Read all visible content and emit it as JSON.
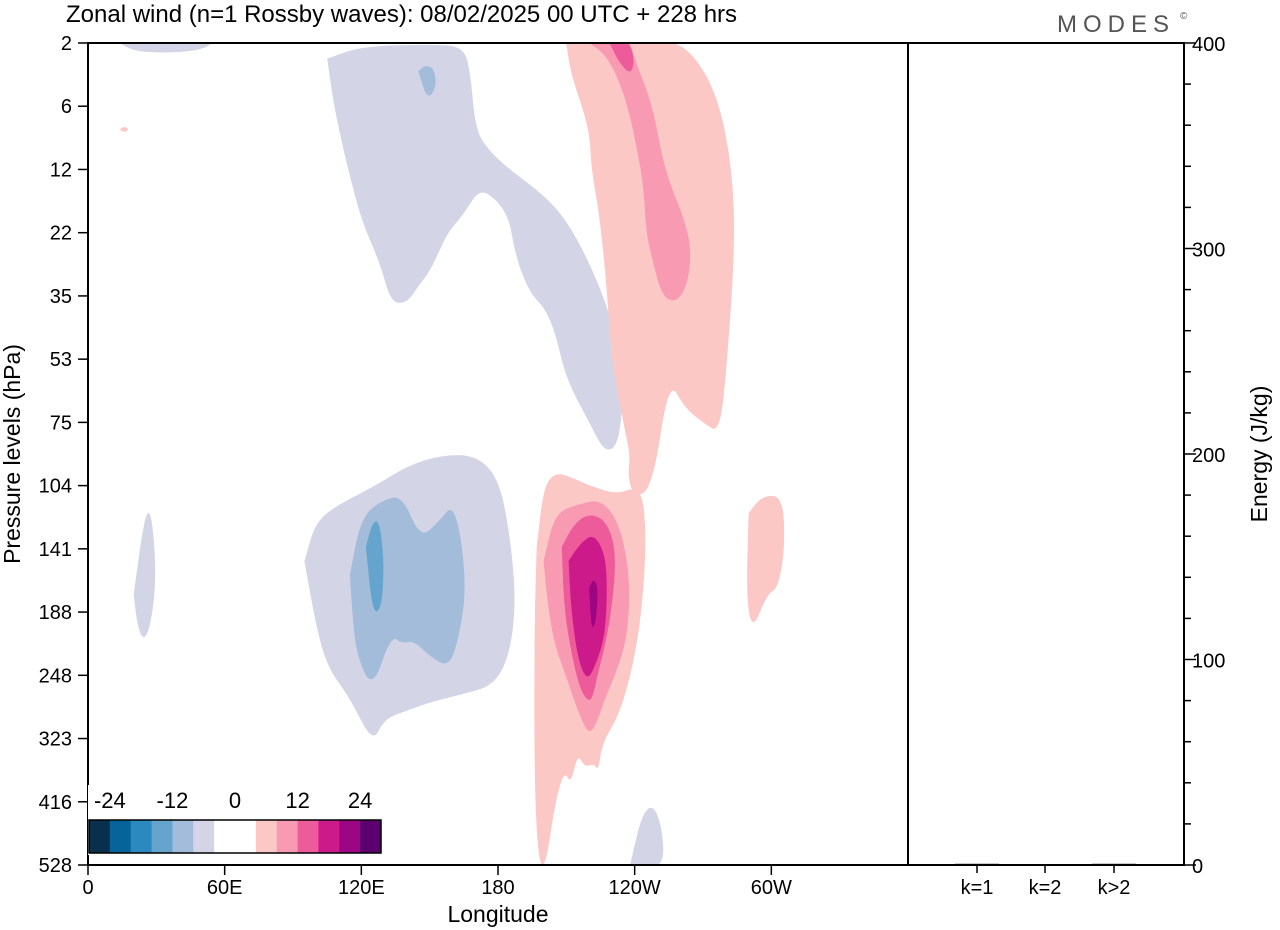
{
  "title": "Zonal wind (n=1 Rossby waves):  08/02/2025  00 UTC  + 228 hrs",
  "logo": "MODES",
  "logo_mark": "©",
  "chart_data": [
    {
      "type": "heatmap",
      "title": "Zonal wind (n=1 Rossby waves):  08/02/2025  00 UTC  + 228 hrs",
      "xlabel": "Longitude",
      "ylabel": "Pressure levels (hPa)",
      "x_ticks": [
        "0",
        "60E",
        "120E",
        "180",
        "120W",
        "60W"
      ],
      "x_tick_degrees": [
        0,
        60,
        120,
        180,
        240,
        300
      ],
      "xlim": [
        0,
        360
      ],
      "y_ticks": [
        "2",
        "6",
        "12",
        "22",
        "35",
        "53",
        "75",
        "104",
        "141",
        "188",
        "248",
        "323",
        "416",
        "528"
      ],
      "colorbar": {
        "labels": [
          "-24",
          "-12",
          "0",
          "12",
          "24"
        ],
        "colors": [
          "#08304d",
          "#07649a",
          "#2b89c0",
          "#65a4cc",
          "#a3bcda",
          "#d3d5e7",
          "#ffffff",
          "#ffffff",
          "#fbc8c5",
          "#f89bb2",
          "#ee5b9b",
          "#cd1a8a",
          "#9c0684",
          "#5c006f"
        ]
      },
      "contours": [
        {
          "level": -4,
          "color": "#d3d5e7",
          "regions": [
            {
              "lon": [
                14,
                22,
                42,
                50,
                55,
                50,
                40,
                30,
                20,
                14
              ],
              "lev": [
                2,
                2,
                2,
                2,
                2,
                2.4,
                2.6,
                2.6,
                2.5,
                2
              ]
            },
            {
              "lon": [
                105,
                120,
                150,
                165,
                168,
                170,
                175,
                185,
                200,
                210,
                220,
                228,
                234,
                235,
                233,
                227,
                220,
                210,
                205,
                200,
                195,
                190,
                187,
                185,
                180,
                172,
                165,
                158,
                155,
                150,
                145,
                140,
                133,
                128,
                120,
                115,
                112,
                108,
                105
              ],
              "lev": [
                3,
                2.2,
                2.1,
                2.2,
                4,
                8,
                10,
                12,
                16,
                20,
                28,
                38,
                52,
                65,
                85,
                89,
                75,
                60,
                45,
                38,
                35,
                30,
                25,
                20,
                17,
                15,
                19,
                22,
                25,
                30,
                33,
                37,
                37,
                28,
                20,
                13,
                10,
                6,
                3
              ]
            },
            {
              "lon": [
                20,
                25,
                28,
                30,
                28,
                25,
                22,
                20
              ],
              "lev": [
                175,
                120,
                120,
                160,
                195,
                215,
                205,
                175
              ]
            },
            {
              "lon": [
                95,
                100,
                110,
                125,
                140,
                155,
                170,
                180,
                185,
                188,
                185,
                178,
                165,
                150,
                140,
                130,
                125,
                115,
                105,
                100,
                95
              ],
              "lev": [
                150,
                125,
                115,
                105,
                95,
                90,
                90,
                100,
                130,
                180,
                230,
                260,
                270,
                280,
                290,
                300,
                330,
                275,
                240,
                200,
                150
              ]
            },
            {
              "lon": [
                238,
                243,
                248,
                252,
                253,
                245,
                238
              ],
              "lev": [
                528,
                440,
                420,
                460,
                528,
                528,
                528
              ]
            }
          ]
        },
        {
          "level": -8,
          "color": "#a3bcda",
          "regions": [
            {
              "lon": [
                145,
                148,
                152,
                153,
                149,
                145
              ],
              "lev": [
                3.8,
                3.4,
                3.6,
                4.8,
                5.6,
                3.8
              ]
            },
            {
              "lon": [
                115,
                120,
                130,
                138,
                146,
                154,
                160,
                164,
                166,
                162,
                158,
                150,
                143,
                138,
                133,
                125,
                118,
                116,
                115
              ],
              "lev": [
                160,
                122,
                112,
                110,
                135,
                125,
                115,
                135,
                175,
                220,
                240,
                230,
                215,
                218,
                210,
                265,
                230,
                190,
                160
              ]
            }
          ]
        },
        {
          "level": -12,
          "color": "#65a4cc",
          "regions": [
            {
              "lon": [
                122,
                125,
                128,
                130,
                129,
                125,
                122
              ],
              "lev": [
                140,
                125,
                125,
                150,
                185,
                190,
                140
              ]
            }
          ]
        },
        {
          "level": 4,
          "color": "#fbc8c5",
          "regions": [
            {
              "lon": [
                210,
                215,
                218,
                222,
                230,
                238,
                248,
                262,
                276,
                283,
                284,
                280,
                277,
                270,
                262,
                255,
                248,
                240,
                237,
                238,
                236,
                230,
                228,
                226,
                224,
                221,
                220,
                212,
                210
              ],
              "lev": [
                2,
                2,
                2,
                2,
                2,
                2,
                2,
                2,
                5,
                12,
                26,
                60,
                80,
                75,
                70,
                60,
                104,
                112,
                100,
                90,
                80,
                55,
                35,
                25,
                18,
                12,
                8,
                4,
                2
              ]
            },
            {
              "lon": [
                197,
                200,
                205,
                212,
                220,
                232,
                240,
                244,
                245,
                243,
                240,
                236,
                232,
                227,
                225,
                224,
                222,
                218,
                215,
                212,
                209,
                205,
                201,
                198,
                196,
                196,
                197
              ],
              "lev": [
                140,
                105,
                98,
                100,
                104,
                109,
                105,
                112,
                141,
                188,
                230,
                270,
                300,
                323,
                345,
                370,
                360,
                365,
                345,
                390,
                370,
                420,
                528,
                528,
                400,
                200,
                140
              ]
            },
            {
              "lon": [
                290,
                296,
                305,
                306,
                303,
                298,
                292,
                289,
                290
              ],
              "lev": [
                120,
                110,
                110,
                140,
                170,
                175,
                205,
                180,
                120
              ]
            },
            {
              "lon": [
                14,
                16,
                18,
                16,
                14
              ],
              "lev": [
                8.2,
                7.9,
                8.2,
                8.5,
                8.2
              ]
            }
          ]
        },
        {
          "level": 8,
          "color": "#f89bb2",
          "regions": [
            {
              "lon": [
                220,
                230,
                238,
                240,
                248,
                253,
                262,
                265,
                263,
                258,
                252,
                248,
                245,
                244,
                241,
                237,
                232,
                228,
                225,
                222,
                220
              ],
              "lev": [
                2,
                2,
                2,
                3,
                6,
                12,
                20,
                26,
                33,
                37,
                35,
                28,
                22,
                15,
                10,
                6,
                4,
                3,
                2.5,
                2.2,
                2
              ]
            },
            {
              "lon": [
                200,
                205,
                215,
                225,
                233,
                238,
                237,
                232,
                227,
                224,
                220,
                215,
                210,
                205,
                202,
                200
              ],
              "lev": [
                150,
                120,
                115,
                112,
                125,
                160,
                210,
                245,
                275,
                300,
                320,
                290,
                250,
                220,
                185,
                150
              ]
            }
          ]
        },
        {
          "level": 12,
          "color": "#ee5b9b",
          "regions": [
            {
              "lon": [
                229,
                235,
                238,
                240,
                238,
                233,
                229
              ],
              "lev": [
                2,
                2,
                2,
                3.2,
                4,
                3.2,
                2
              ]
            },
            {
              "lon": [
                208,
                213,
                220,
                228,
                232,
                230,
                227,
                224,
                222,
                220,
                216,
                212,
                209,
                208
              ],
              "lev": [
                140,
                127,
                120,
                125,
                145,
                185,
                220,
                245,
                270,
                280,
                265,
                225,
                185,
                140
              ]
            }
          ]
        },
        {
          "level": 16,
          "color": "#cd1a8a",
          "regions": [
            {
              "lon": [
                211,
                216,
                222,
                227,
                228,
                227,
                223,
                219,
                215,
                212,
                211
              ],
              "lev": [
                150,
                138,
                132,
                145,
                170,
                210,
                238,
                255,
                232,
                185,
                150
              ]
            }
          ]
        },
        {
          "level": 20,
          "color": "#9c0684",
          "regions": [
            {
              "lon": [
                220,
                222,
                224,
                223,
                221,
                220
              ],
              "lev": [
                170,
                163,
                170,
                198,
                205,
                170
              ]
            }
          ]
        }
      ]
    },
    {
      "type": "bar",
      "ylabel": "Energy (J/kg)",
      "categories": [
        "k=1",
        "k=2",
        "k>2"
      ],
      "values": [
        0.6,
        0,
        0.6
      ],
      "ylim": [
        0,
        400
      ],
      "y_ticks": [
        "0",
        "100",
        "200",
        "300",
        "400"
      ]
    }
  ]
}
